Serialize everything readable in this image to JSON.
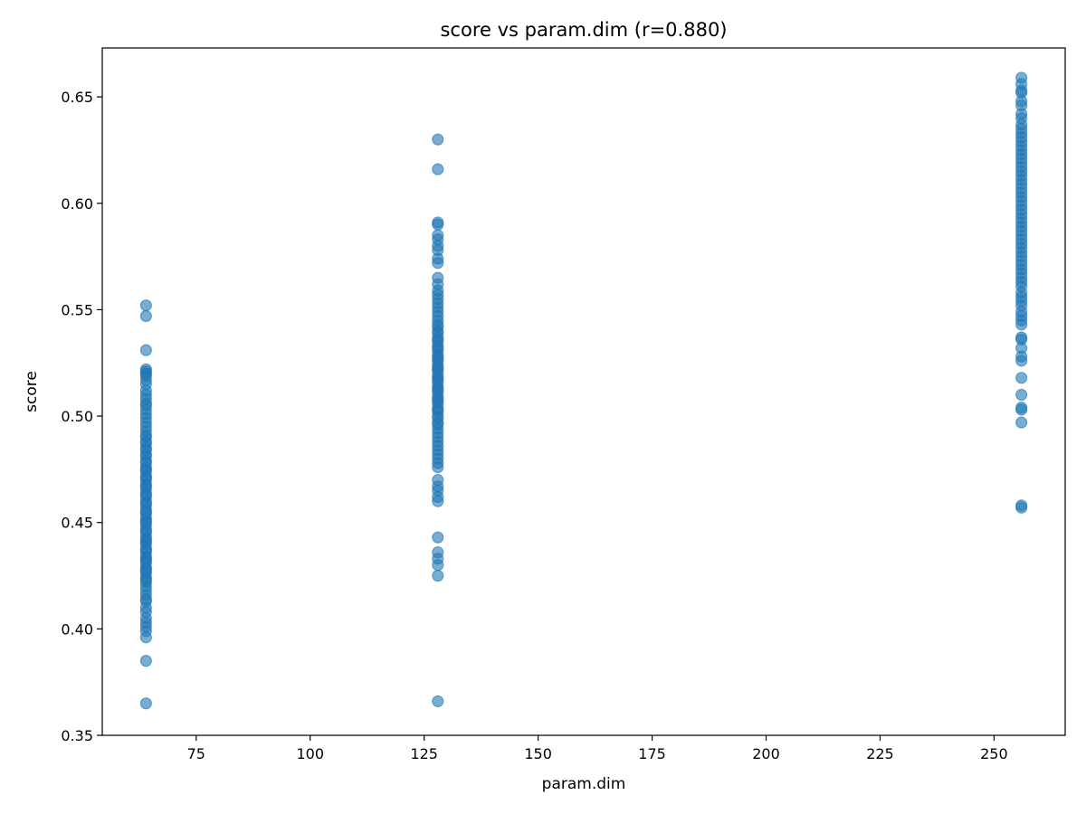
{
  "chart_data": {
    "type": "scatter",
    "title": "score vs param.dim (r=0.880)",
    "xlabel": "param.dim",
    "ylabel": "score",
    "xlim": [
      54.4,
      265.6
    ],
    "ylim": [
      0.35,
      0.673
    ],
    "xticks": [
      75,
      100,
      125,
      150,
      175,
      200,
      225,
      250
    ],
    "yticks": [
      0.35,
      0.4,
      0.45,
      0.5,
      0.55,
      0.6,
      0.65
    ],
    "ytick_labels": [
      "0.35",
      "0.40",
      "0.45",
      "0.50",
      "0.55",
      "0.60",
      "0.65"
    ],
    "grid": false,
    "point_color": "#1f77b4",
    "point_alpha": 0.6,
    "series": [
      {
        "x": 64,
        "y": [
          0.552,
          0.547,
          0.531,
          0.522,
          0.521,
          0.52,
          0.519,
          0.517,
          0.515,
          0.512,
          0.51,
          0.508,
          0.506,
          0.505,
          0.503,
          0.501,
          0.499,
          0.497,
          0.495,
          0.493,
          0.491,
          0.49,
          0.488,
          0.487,
          0.485,
          0.484,
          0.482,
          0.481,
          0.479,
          0.478,
          0.476,
          0.475,
          0.474,
          0.472,
          0.471,
          0.47,
          0.468,
          0.467,
          0.466,
          0.464,
          0.463,
          0.462,
          0.46,
          0.459,
          0.458,
          0.456,
          0.455,
          0.454,
          0.452,
          0.451,
          0.45,
          0.449,
          0.447,
          0.446,
          0.445,
          0.443,
          0.442,
          0.441,
          0.44,
          0.438,
          0.437,
          0.436,
          0.434,
          0.433,
          0.432,
          0.431,
          0.429,
          0.428,
          0.427,
          0.426,
          0.424,
          0.423,
          0.422,
          0.42,
          0.418,
          0.416,
          0.414,
          0.413,
          0.41,
          0.408,
          0.405,
          0.403,
          0.401,
          0.399,
          0.396,
          0.385,
          0.365
        ]
      },
      {
        "x": 128,
        "y": [
          0.63,
          0.616,
          0.591,
          0.59,
          0.585,
          0.583,
          0.58,
          0.578,
          0.574,
          0.572,
          0.565,
          0.562,
          0.559,
          0.557,
          0.555,
          0.553,
          0.551,
          0.549,
          0.547,
          0.545,
          0.543,
          0.542,
          0.54,
          0.539,
          0.537,
          0.536,
          0.535,
          0.533,
          0.532,
          0.531,
          0.529,
          0.528,
          0.527,
          0.526,
          0.524,
          0.523,
          0.522,
          0.521,
          0.519,
          0.518,
          0.517,
          0.516,
          0.514,
          0.513,
          0.512,
          0.511,
          0.509,
          0.508,
          0.507,
          0.506,
          0.504,
          0.503,
          0.502,
          0.5,
          0.499,
          0.497,
          0.496,
          0.494,
          0.492,
          0.49,
          0.488,
          0.486,
          0.484,
          0.482,
          0.48,
          0.478,
          0.476,
          0.47,
          0.467,
          0.465,
          0.462,
          0.46,
          0.443,
          0.436,
          0.433,
          0.43,
          0.425,
          0.366
        ]
      },
      {
        "x": 256,
        "y": [
          0.659,
          0.656,
          0.653,
          0.652,
          0.648,
          0.646,
          0.642,
          0.64,
          0.637,
          0.635,
          0.633,
          0.631,
          0.629,
          0.627,
          0.625,
          0.623,
          0.621,
          0.619,
          0.617,
          0.615,
          0.613,
          0.611,
          0.609,
          0.607,
          0.605,
          0.603,
          0.601,
          0.599,
          0.597,
          0.595,
          0.593,
          0.591,
          0.589,
          0.587,
          0.585,
          0.583,
          0.581,
          0.579,
          0.577,
          0.575,
          0.573,
          0.571,
          0.569,
          0.567,
          0.565,
          0.563,
          0.561,
          0.558,
          0.556,
          0.554,
          0.552,
          0.549,
          0.547,
          0.545,
          0.543,
          0.537,
          0.536,
          0.532,
          0.528,
          0.526,
          0.518,
          0.51,
          0.504,
          0.503,
          0.497,
          0.458,
          0.457
        ]
      }
    ]
  }
}
